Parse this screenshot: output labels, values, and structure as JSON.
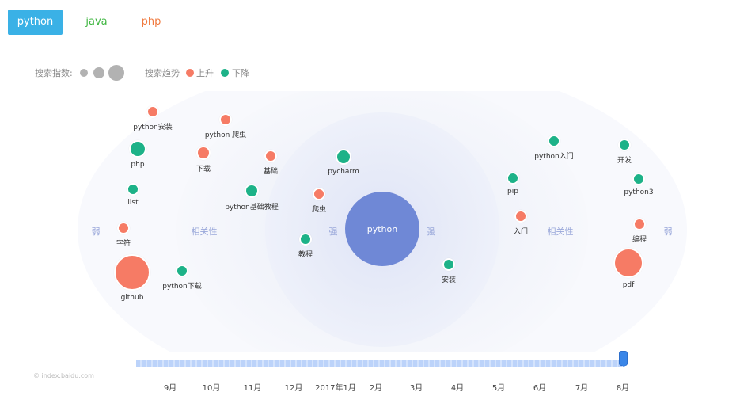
{
  "tabs": [
    {
      "label": "python",
      "active": true,
      "color": "#ffffff",
      "bg": "#3ab1e6"
    },
    {
      "label": "java",
      "active": false,
      "color": "#3fb641",
      "bg": "transparent"
    },
    {
      "label": "php",
      "active": false,
      "color": "#f07a3f",
      "bg": "transparent"
    }
  ],
  "legend": {
    "index_label": "搜索指数:",
    "trend_label": "搜索趋势",
    "up_label": "上升",
    "down_label": "下降",
    "up_color": "#f67b65",
    "down_color": "#1db288"
  },
  "chart": {
    "center_keyword": "python",
    "center_color": "#6f88d6",
    "axis_labels": {
      "weak_left": "弱",
      "relevance_left": "相关性",
      "strong_left": "强",
      "strong_right": "强",
      "relevance_right": "相关性",
      "weak_right": "弱"
    },
    "keywords": [
      {
        "label": "python安装",
        "trend": "up"
      },
      {
        "label": "python 爬虫",
        "trend": "up"
      },
      {
        "label": "php",
        "trend": "down"
      },
      {
        "label": "下载",
        "trend": "up"
      },
      {
        "label": "基础",
        "trend": "up"
      },
      {
        "label": "pycharm",
        "trend": "down"
      },
      {
        "label": "list",
        "trend": "down"
      },
      {
        "label": "python基础教程",
        "trend": "down"
      },
      {
        "label": "爬虫",
        "trend": "up"
      },
      {
        "label": "字符",
        "trend": "up"
      },
      {
        "label": "教程",
        "trend": "down"
      },
      {
        "label": "github",
        "trend": "up"
      },
      {
        "label": "python下载",
        "trend": "down"
      },
      {
        "label": "python入门",
        "trend": "down"
      },
      {
        "label": "开发",
        "trend": "down"
      },
      {
        "label": "pip",
        "trend": "down"
      },
      {
        "label": "python3",
        "trend": "down"
      },
      {
        "label": "入门",
        "trend": "up"
      },
      {
        "label": "编程",
        "trend": "up"
      },
      {
        "label": "安装",
        "trend": "down"
      },
      {
        "label": "pdf",
        "trend": "up"
      }
    ]
  },
  "timeline": {
    "months": [
      "9月",
      "10月",
      "11月",
      "12月",
      "2017年1月",
      "2月",
      "3月",
      "4月",
      "5月",
      "6月",
      "7月",
      "8月"
    ],
    "selected": "8月"
  },
  "credit": "© index.baidu.com"
}
